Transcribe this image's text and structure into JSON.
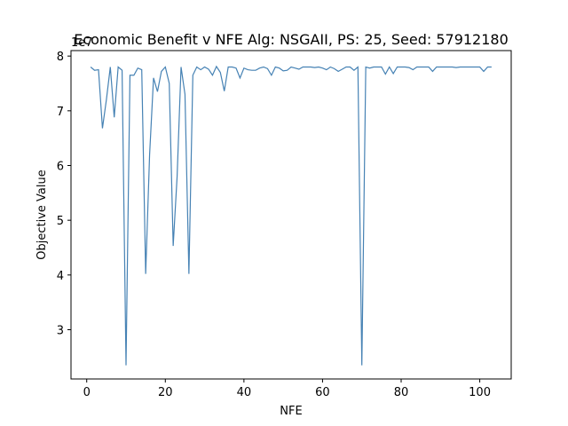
{
  "chart_data": {
    "type": "line",
    "title": "Economic Benefit v NFE Alg: NSGAII, PS: 25, Seed: 57912180",
    "xlabel": "NFE",
    "ylabel": "Objective Value",
    "y_offset_label": "1e7",
    "xlim": [
      -4,
      108
    ],
    "ylim": [
      2.1,
      8.1
    ],
    "x_ticks": [
      0,
      20,
      40,
      60,
      80,
      100
    ],
    "x_tick_labels": [
      "0",
      "20",
      "40",
      "60",
      "80",
      "100"
    ],
    "y_ticks": [
      3,
      4,
      5,
      6,
      7,
      8
    ],
    "y_tick_labels": [
      "3",
      "4",
      "5",
      "6",
      "7",
      "8"
    ],
    "grid": false,
    "line_color": "#4682b4",
    "series": [
      {
        "x": [
          1,
          2,
          3,
          4,
          5,
          6,
          7,
          8,
          9,
          10,
          11,
          12,
          13,
          14,
          15,
          16,
          17,
          18,
          19,
          20,
          21,
          22,
          23,
          24,
          25,
          26,
          27,
          28,
          29,
          30,
          31,
          32,
          33,
          34,
          35,
          36,
          37,
          38,
          39,
          40,
          41,
          42,
          43,
          44,
          45,
          46,
          47,
          48,
          49,
          50,
          51,
          52,
          53,
          54,
          55,
          56,
          57,
          58,
          59,
          60,
          61,
          62,
          63,
          64,
          65,
          66,
          67,
          68,
          69,
          70,
          71,
          72,
          73,
          74,
          75,
          76,
          77,
          78,
          79,
          80,
          81,
          82,
          83,
          84,
          85,
          86,
          87,
          88,
          89,
          90,
          91,
          92,
          93,
          94,
          95,
          96,
          97,
          98,
          99,
          100,
          101,
          102,
          103
        ],
        "values": [
          7.8,
          7.74,
          7.75,
          6.68,
          7.2,
          7.8,
          6.88,
          7.8,
          7.74,
          2.35,
          7.65,
          7.65,
          7.78,
          7.75,
          4.02,
          6.2,
          7.6,
          7.35,
          7.72,
          7.8,
          7.5,
          4.53,
          5.8,
          7.8,
          7.3,
          4.02,
          7.65,
          7.8,
          7.75,
          7.8,
          7.76,
          7.65,
          7.81,
          7.7,
          7.36,
          7.8,
          7.8,
          7.78,
          7.6,
          7.78,
          7.75,
          7.74,
          7.74,
          7.78,
          7.8,
          7.77,
          7.65,
          7.8,
          7.78,
          7.73,
          7.74,
          7.8,
          7.78,
          7.76,
          7.8,
          7.8,
          7.8,
          7.79,
          7.8,
          7.78,
          7.75,
          7.8,
          7.77,
          7.72,
          7.76,
          7.8,
          7.8,
          7.74,
          7.8,
          2.35,
          7.8,
          7.78,
          7.8,
          7.8,
          7.8,
          7.67,
          7.8,
          7.68,
          7.8,
          7.8,
          7.8,
          7.79,
          7.75,
          7.8,
          7.8,
          7.8,
          7.8,
          7.72,
          7.8,
          7.8,
          7.8,
          7.8,
          7.8,
          7.79,
          7.8,
          7.8,
          7.8,
          7.8,
          7.8,
          7.8,
          7.72,
          7.8,
          7.8
        ]
      }
    ]
  }
}
